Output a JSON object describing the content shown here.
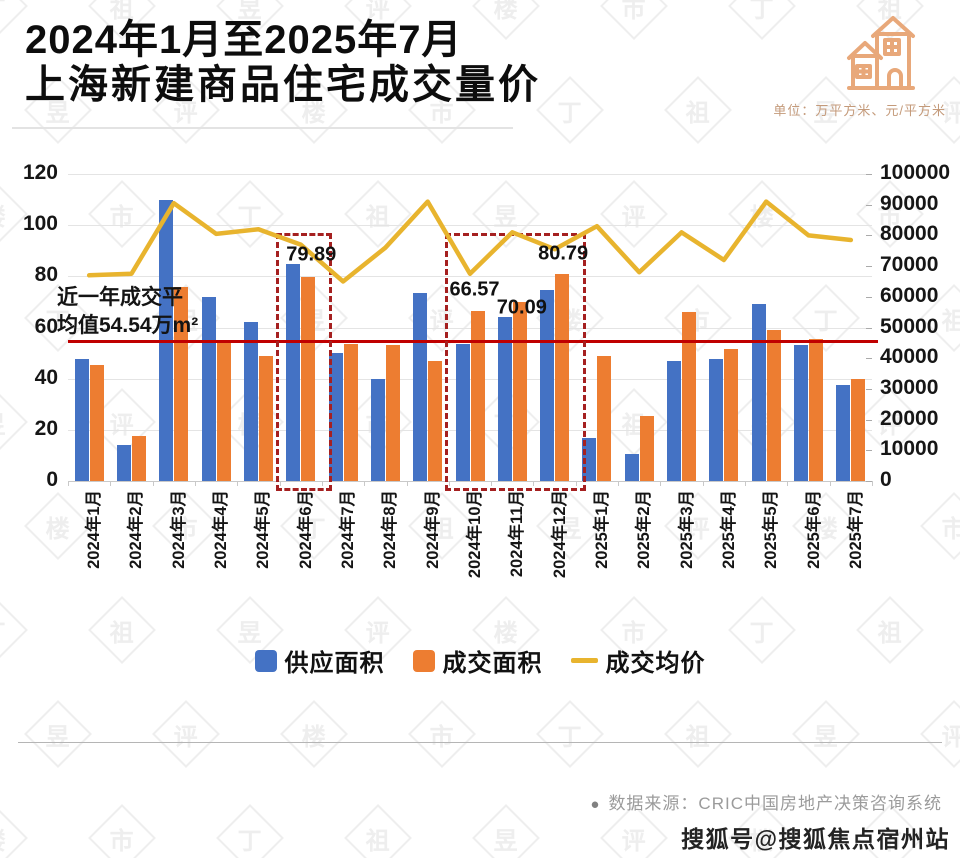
{
  "header": {
    "title_line1": "2024年1月至2025年7月",
    "title_line2": "上海新建商品住宅成交量价",
    "unit_note": "单位：万平方米、元/平方米",
    "icon_color": "#e8a87a"
  },
  "chart_data": {
    "type": "bar",
    "categories": [
      "2024年1月",
      "2024年2月",
      "2024年3月",
      "2024年4月",
      "2024年5月",
      "2024年6月",
      "2024年7月",
      "2024年8月",
      "2024年9月",
      "2024年10月",
      "2024年11月",
      "2024年12月",
      "2025年1月",
      "2025年2月",
      "2025年3月",
      "2025年4月",
      "2025年5月",
      "2025年6月",
      "2025年7月"
    ],
    "series": [
      {
        "name": "供应面积",
        "type": "bar",
        "axis": "left",
        "color": "#4472C4",
        "values": [
          47.5,
          14,
          110,
          72,
          62,
          85,
          50,
          40,
          73.5,
          53.5,
          64,
          74.5,
          17,
          10.5,
          47,
          47.5,
          69,
          53,
          37.5
        ]
      },
      {
        "name": "成交面积",
        "type": "bar",
        "axis": "left",
        "color": "#ED7D31",
        "values": [
          45.5,
          17.5,
          76,
          55,
          49,
          79.89,
          53.5,
          53,
          47,
          66.57,
          70.09,
          80.79,
          49,
          25.5,
          66,
          51.5,
          59,
          55.5,
          40
        ]
      },
      {
        "name": "成交均价",
        "type": "line",
        "axis": "right",
        "color": "#E8B42E",
        "values": [
          67000,
          67500,
          90500,
          80500,
          82000,
          77000,
          65000,
          76000,
          91000,
          67500,
          81000,
          75500,
          83000,
          68000,
          81000,
          72000,
          91000,
          80000,
          78500
        ]
      }
    ],
    "left_axis": {
      "min": 0,
      "max": 120,
      "step": 20,
      "ticks": [
        "0",
        "20",
        "40",
        "60",
        "80",
        "100",
        "120"
      ]
    },
    "right_axis": {
      "min": 0,
      "max": 100000,
      "step": 10000,
      "ticks": [
        "0",
        "10000",
        "20000",
        "30000",
        "40000",
        "50000",
        "60000",
        "70000",
        "80000",
        "90000",
        "100000"
      ]
    },
    "average_line": {
      "value": 54.54,
      "color": "#c00000",
      "label_line1": "近一年成交平",
      "label_line2": "均值54.54万m²"
    },
    "bar_labels": [
      {
        "month": "2024年6月",
        "text": "79.89"
      },
      {
        "month": "2024年10月",
        "text": "66.57"
      },
      {
        "month": "2024年11月",
        "text": "70.09"
      },
      {
        "month": "2024年12月",
        "text": "80.79"
      }
    ],
    "highlight_boxes": [
      {
        "months": [
          "2024年6月"
        ]
      },
      {
        "months": [
          "2024年10月",
          "2024年11月",
          "2024年12月"
        ]
      }
    ],
    "grid": true,
    "legend_position": "bottom",
    "title": "2024年1月至2025年7月上海新建商品住宅成交量价",
    "ylabel_left": "万平方米",
    "ylabel_right": "元/平方米"
  },
  "legend": [
    {
      "label": "供应面积",
      "color": "#4472C4",
      "type": "square"
    },
    {
      "label": "成交面积",
      "color": "#ED7D31",
      "type": "square"
    },
    {
      "label": "成交均价",
      "color": "#E8B42E",
      "type": "line"
    }
  ],
  "footer": {
    "bullet": "●",
    "source": "数据来源：CRIC中国房地产决策咨询系统",
    "stamp": "搜狐号@搜狐焦点宿州站"
  },
  "watermark": {
    "text": "丁祖昱评楼市"
  }
}
